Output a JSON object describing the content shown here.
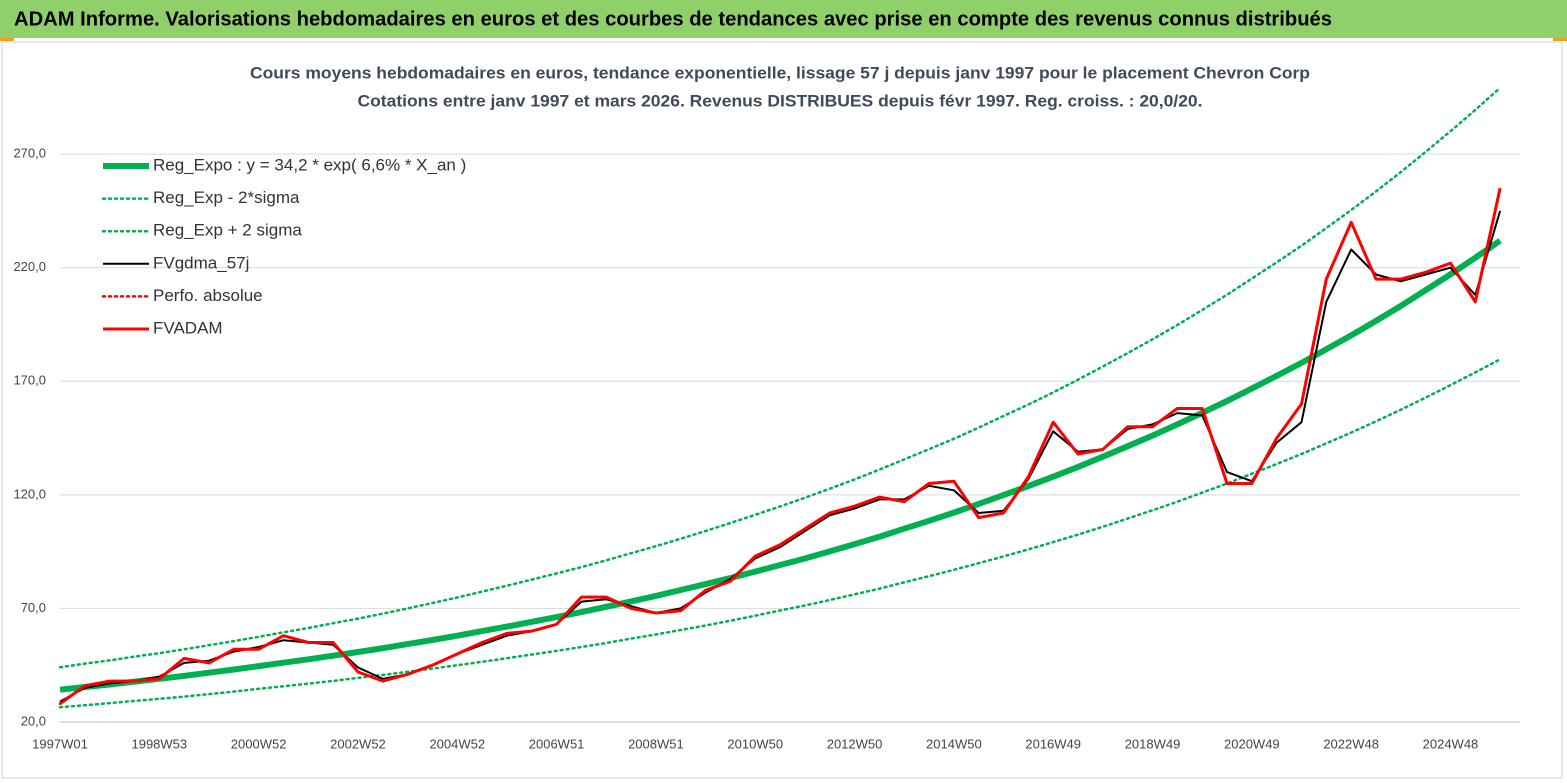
{
  "header": {
    "title": "ADAM Informe. Valorisations hebdomadaires en euros et des courbes de tendances avec prise en compte des revenus connus distribués"
  },
  "chart_data": {
    "type": "line",
    "title": "Cours moyens hebdomadaires en euros, tendance exponentielle, lissage 57 j depuis janv 1997 pour le placement Chevron Corp",
    "subtitle": "Cotations entre janv 1997 et mars 2026. Revenus DISTRIBUES depuis févr 1997. Reg. croiss. : 20,0/20.",
    "categories": [
      "1997W01",
      null,
      null,
      null,
      "1998W53",
      null,
      null,
      null,
      "2000W52",
      null,
      null,
      null,
      "2002W52",
      null,
      null,
      null,
      "2004W52",
      null,
      null,
      null,
      "2006W51",
      null,
      null,
      null,
      "2008W51",
      null,
      null,
      null,
      "2010W50",
      null,
      null,
      null,
      "2012W50",
      null,
      null,
      null,
      "2014W50",
      null,
      null,
      null,
      "2016W49",
      null,
      null,
      null,
      "2018W49",
      null,
      null,
      null,
      "2020W49",
      null,
      null,
      null,
      "2022W48",
      null,
      null,
      null,
      "2024W48",
      null,
      null
    ],
    "ylim": [
      20,
      300
    ],
    "yticks": [
      {
        "value": 20,
        "label": "20,0"
      },
      {
        "value": 70,
        "label": "70,0"
      },
      {
        "value": 120,
        "label": "120,0"
      },
      {
        "value": 170,
        "label": "170,0"
      },
      {
        "value": 220,
        "label": "220,0"
      },
      {
        "value": 270,
        "label": "270,0"
      }
    ],
    "grid": true,
    "legend": "top-left",
    "series": [
      {
        "name": "Reg_Expo : y = 34,2 * exp( 6,6% *  X_an )",
        "color": "#00b050",
        "style": "thick",
        "values": [
          34.2,
          35.4,
          36.5,
          37.8,
          39.0,
          40.3,
          41.7,
          43.1,
          44.6,
          46.1,
          47.6,
          49.2,
          50.8,
          52.5,
          54.3,
          56.1,
          58.0,
          60.0,
          62.0,
          64.1,
          66.2,
          68.4,
          70.7,
          73.1,
          75.5,
          78.1,
          80.7,
          83.4,
          86.2,
          89.1,
          92.0,
          95.1,
          98.3,
          101.6,
          105.1,
          108.6,
          112.2,
          116.0,
          119.9,
          123.9,
          128.0,
          132.3,
          136.8,
          141.4,
          146.1,
          151.0,
          156.1,
          161.3,
          166.8,
          172.4,
          178.1,
          184.1,
          190.2,
          196.6,
          203.2,
          210.1,
          217.1,
          224.4,
          231.9
        ]
      },
      {
        "name": "Reg_Exp - 2*sigma",
        "color": "#00b050",
        "style": "dotted",
        "values": [
          26.5,
          27.4,
          28.3,
          29.3,
          30.2,
          31.2,
          32.3,
          33.4,
          34.6,
          35.7,
          36.9,
          38.1,
          39.4,
          40.7,
          42.1,
          43.5,
          45.0,
          46.5,
          48.1,
          49.7,
          51.3,
          53.0,
          54.8,
          56.7,
          58.5,
          60.5,
          62.5,
          64.6,
          66.8,
          69.1,
          71.3,
          73.7,
          76.2,
          78.7,
          81.5,
          84.2,
          87.0,
          89.9,
          92.9,
          96.0,
          99.2,
          102.5,
          106.0,
          109.6,
          113.2,
          117.0,
          121.0,
          125.0,
          129.3,
          133.6,
          138.0,
          142.7,
          147.4,
          152.4,
          157.5,
          162.8,
          168.3,
          173.9,
          179.7
        ]
      },
      {
        "name": "Reg_Exp + 2 sigma",
        "color": "#00b050",
        "style": "dotted",
        "values": [
          44.1,
          45.7,
          47.1,
          48.8,
          50.3,
          52.0,
          53.8,
          55.6,
          57.5,
          59.5,
          61.4,
          63.5,
          65.5,
          67.7,
          70.0,
          72.4,
          74.8,
          77.4,
          80.0,
          82.7,
          85.4,
          88.2,
          91.2,
          94.3,
          97.4,
          100.7,
          104.1,
          107.6,
          111.2,
          114.9,
          118.7,
          122.7,
          126.8,
          131.1,
          135.6,
          140.1,
          144.7,
          149.6,
          154.7,
          159.8,
          165.1,
          170.7,
          176.5,
          182.4,
          188.5,
          194.8,
          201.4,
          208.1,
          215.2,
          222.4,
          229.7,
          237.5,
          245.4,
          253.6,
          262.1,
          271.0,
          280.1,
          289.5,
          299.2
        ]
      },
      {
        "name": "FVgdma_57j",
        "color": "#000000",
        "style": "thin",
        "values": [
          29,
          35,
          37,
          38,
          40,
          46,
          47,
          51,
          53,
          56,
          55,
          54,
          44,
          39,
          41,
          45,
          50,
          54,
          58,
          60,
          63,
          73,
          74,
          71,
          68,
          70,
          77,
          83,
          92,
          97,
          104,
          111,
          114,
          118,
          118,
          124,
          122,
          112,
          113,
          127,
          148,
          139,
          140,
          149,
          151,
          156,
          155,
          130,
          126,
          143,
          152,
          205,
          228,
          217,
          214,
          217,
          220,
          208,
          245
        ]
      },
      {
        "name": "Perfo. absolue",
        "color": "#ff0000",
        "style": "dotted",
        "values": [
          28,
          36,
          38,
          38,
          39,
          48,
          46,
          52,
          52,
          58,
          55,
          55,
          42,
          38,
          41,
          45,
          50,
          55,
          59,
          60,
          63,
          75,
          75,
          70,
          68,
          69,
          78,
          82,
          93,
          98,
          105,
          112,
          115,
          119,
          117,
          125,
          126,
          110,
          112,
          128,
          152,
          138,
          140,
          150,
          150,
          158,
          158,
          125,
          125,
          145,
          160,
          215,
          240,
          215,
          215,
          218,
          222,
          205,
          255
        ]
      },
      {
        "name": "FVADAM",
        "color": "#ff0000",
        "style": "thick-red",
        "values": [
          28,
          36,
          38,
          38,
          39,
          48,
          46,
          52,
          52,
          58,
          55,
          55,
          42,
          38,
          41,
          45,
          50,
          55,
          59,
          60,
          63,
          75,
          75,
          70,
          68,
          69,
          78,
          82,
          93,
          98,
          105,
          112,
          115,
          119,
          117,
          125,
          126,
          110,
          112,
          128,
          152,
          138,
          140,
          150,
          150,
          158,
          158,
          125,
          125,
          145,
          160,
          215,
          240,
          215,
          215,
          218,
          222,
          205,
          255
        ]
      }
    ]
  }
}
